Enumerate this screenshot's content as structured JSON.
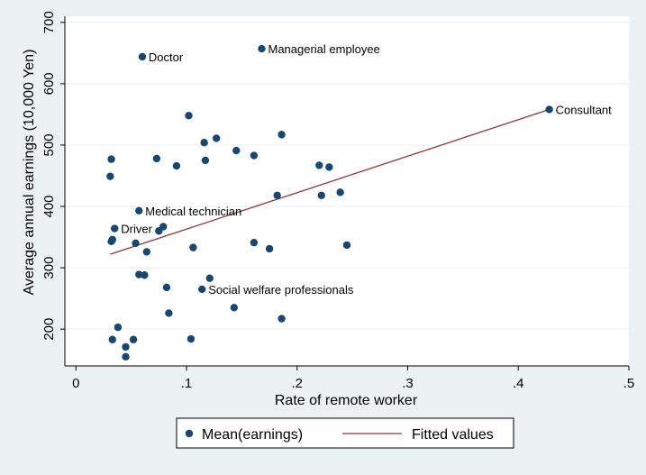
{
  "chart_data": {
    "type": "scatter",
    "xlabel": "Rate of remote worker",
    "ylabel": "Average annual earnings (10,000 Yen)",
    "xlim": [
      -0.01,
      0.5
    ],
    "ylim": [
      140,
      710
    ],
    "xticks": [
      0,
      0.1,
      0.2,
      0.3,
      0.4,
      0.5
    ],
    "xtick_labels": [
      "0",
      ".1",
      ".2",
      ".3",
      ".4",
      ".5"
    ],
    "yticks": [
      200,
      300,
      400,
      500,
      600,
      700
    ],
    "ytick_labels": [
      "200",
      "300",
      "400",
      "500",
      "600",
      "700"
    ],
    "grid": "horizontal",
    "legend_position": "bottom",
    "colors": {
      "background": "#eaf2f3",
      "plot_background": "#ffffff",
      "grid": "#eaf2f3",
      "marker": "#1a476f",
      "fit_line": "#90353b"
    },
    "series": [
      {
        "name": "Mean(earnings)",
        "type": "scatter",
        "points": [
          {
            "x": 0.06,
            "y": 644,
            "label": "Doctor"
          },
          {
            "x": 0.168,
            "y": 657,
            "label": "Managerial employee"
          },
          {
            "x": 0.428,
            "y": 558,
            "label": "Consultant"
          },
          {
            "x": 0.057,
            "y": 393,
            "label": "Medical technician"
          },
          {
            "x": 0.035,
            "y": 364,
            "label": "Driver"
          },
          {
            "x": 0.114,
            "y": 265,
            "label": "Social welfare professionals"
          },
          {
            "x": 0.102,
            "y": 548
          },
          {
            "x": 0.127,
            "y": 511
          },
          {
            "x": 0.116,
            "y": 504
          },
          {
            "x": 0.186,
            "y": 517
          },
          {
            "x": 0.145,
            "y": 491
          },
          {
            "x": 0.161,
            "y": 483
          },
          {
            "x": 0.032,
            "y": 477
          },
          {
            "x": 0.073,
            "y": 478
          },
          {
            "x": 0.117,
            "y": 475
          },
          {
            "x": 0.091,
            "y": 466
          },
          {
            "x": 0.22,
            "y": 467
          },
          {
            "x": 0.229,
            "y": 464
          },
          {
            "x": 0.031,
            "y": 449
          },
          {
            "x": 0.239,
            "y": 423
          },
          {
            "x": 0.182,
            "y": 418
          },
          {
            "x": 0.222,
            "y": 418
          },
          {
            "x": 0.079,
            "y": 367
          },
          {
            "x": 0.075,
            "y": 360
          },
          {
            "x": 0.033,
            "y": 346
          },
          {
            "x": 0.032,
            "y": 343
          },
          {
            "x": 0.054,
            "y": 340
          },
          {
            "x": 0.161,
            "y": 341
          },
          {
            "x": 0.245,
            "y": 337
          },
          {
            "x": 0.106,
            "y": 333
          },
          {
            "x": 0.175,
            "y": 331
          },
          {
            "x": 0.064,
            "y": 326
          },
          {
            "x": 0.057,
            "y": 289
          },
          {
            "x": 0.062,
            "y": 288
          },
          {
            "x": 0.121,
            "y": 283
          },
          {
            "x": 0.082,
            "y": 268
          },
          {
            "x": 0.143,
            "y": 235
          },
          {
            "x": 0.084,
            "y": 226
          },
          {
            "x": 0.186,
            "y": 217
          },
          {
            "x": 0.038,
            "y": 203
          },
          {
            "x": 0.033,
            "y": 183
          },
          {
            "x": 0.052,
            "y": 183
          },
          {
            "x": 0.104,
            "y": 184
          },
          {
            "x": 0.045,
            "y": 171
          },
          {
            "x": 0.045,
            "y": 155
          }
        ]
      },
      {
        "name": "Fitted values",
        "type": "line",
        "x": [
          0.031,
          0.428
        ],
        "y": [
          322,
          558
        ]
      }
    ]
  }
}
